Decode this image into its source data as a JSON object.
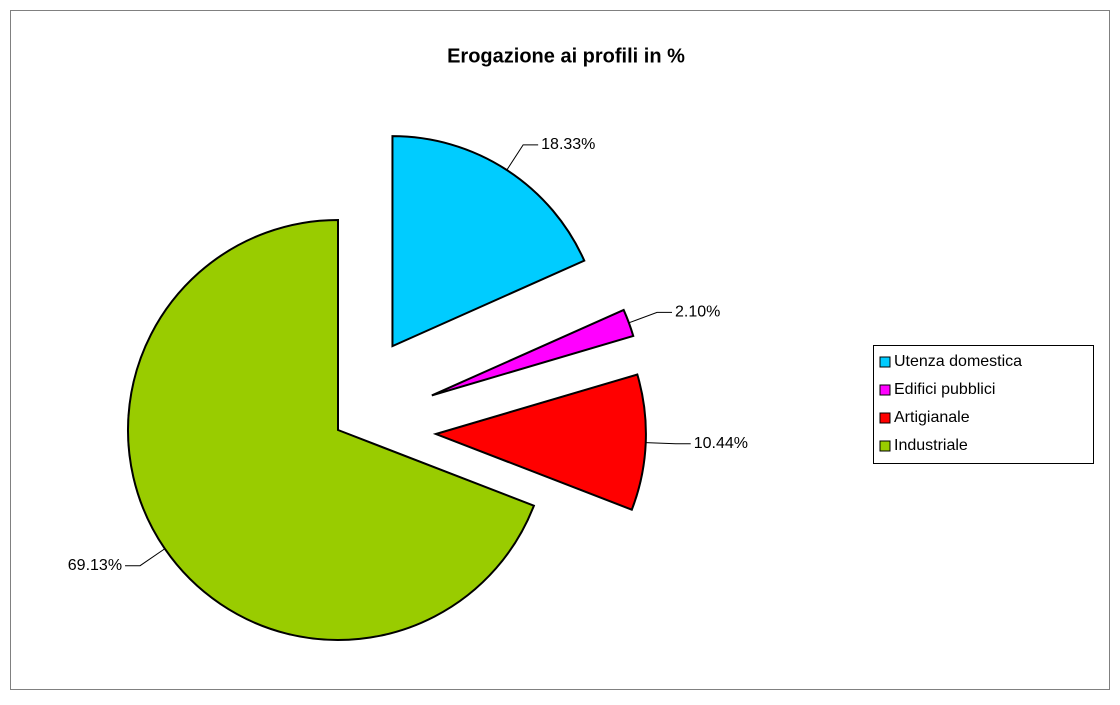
{
  "chart_data": {
    "type": "pie",
    "title": "Erogazione ai profili in %",
    "categories": [
      "Utenza domestica",
      "Edifici pubblici",
      "Artigianale",
      "Industriale"
    ],
    "values": [
      18.33,
      2.1,
      10.44,
      69.13
    ],
    "value_labels": [
      "18.33%",
      "2.10%",
      "10.44%",
      "69.13%"
    ],
    "colors": [
      "#00ccff",
      "#ff00ff",
      "#ff0000",
      "#99cc00"
    ],
    "legend": "right"
  }
}
